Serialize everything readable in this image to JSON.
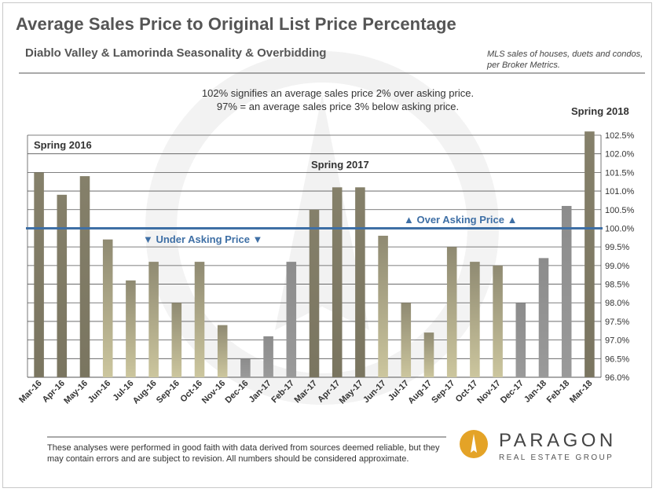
{
  "header": {
    "title": "Average Sales Price to Original List Price Percentage",
    "subtitle": "Diablo Valley & Lamorinda Seasonality & Overbidding",
    "source": "MLS sales of houses, duets and condos, per Broker Metrics."
  },
  "note": {
    "line1": "102% signifies  an average sales  price 2% over asking  price.",
    "line2": "97% = an average sales price  3% below asking price."
  },
  "footer": {
    "disclaimer": "These analyses were performed in good faith with data derived from sources deemed reliable, but they may contain errors and are subject to revision. All numbers should be considered  approximate.",
    "logo_name": "PARAGON",
    "logo_tagline": "REAL ESTATE GROUP"
  },
  "colors": {
    "spring": "#7a7560",
    "other": "#ccc69e",
    "winter": "#8c8c8c",
    "reference": "#3e6fa5"
  },
  "chart_data": {
    "type": "bar",
    "categories": [
      "Mar-16",
      "Apr-16",
      "May-16",
      "Jun-16",
      "Jul-16",
      "Aug-16",
      "Sep-16",
      "Oct-16",
      "Nov-16",
      "Dec-16",
      "Jan-17",
      "Feb-17",
      "Mar-17",
      "Apr-17",
      "May-17",
      "Jun-17",
      "Jul-17",
      "Aug-17",
      "Sep-17",
      "Oct-17",
      "Nov-17",
      "Dec-17",
      "Jan-18",
      "Feb-18",
      "Mar-18"
    ],
    "values": [
      101.5,
      100.9,
      101.4,
      99.7,
      98.6,
      99.1,
      98.0,
      99.1,
      97.4,
      96.5,
      97.1,
      99.1,
      100.5,
      101.1,
      101.1,
      99.8,
      98.0,
      97.2,
      99.5,
      99.1,
      99.0,
      98.0,
      99.2,
      100.6,
      102.6
    ],
    "groups": [
      "spring",
      "spring",
      "spring",
      "other",
      "other",
      "other",
      "other",
      "other",
      "other",
      "winter",
      "winter",
      "winter",
      "spring",
      "spring",
      "spring",
      "other",
      "other",
      "other",
      "other",
      "other",
      "other",
      "winter",
      "winter",
      "winter",
      "spring"
    ],
    "ylim": [
      96.0,
      102.5
    ],
    "yticks": [
      "96.0%",
      "96.5%",
      "97.0%",
      "97.5%",
      "98.0%",
      "98.5%",
      "99.0%",
      "99.5%",
      "100.0%",
      "100.5%",
      "101.0%",
      "101.5%",
      "102.0%",
      "102.5%"
    ],
    "ytick_values": [
      96.0,
      96.5,
      97.0,
      97.5,
      98.0,
      98.5,
      99.0,
      99.5,
      100.0,
      100.5,
      101.0,
      101.5,
      102.0,
      102.5
    ],
    "reference_line": 100.0,
    "grid": true,
    "annotations": {
      "spring_2016": "Spring 2016",
      "spring_2017": "Spring 2017",
      "spring_2018": "Spring 2018",
      "under": "▼ Under Asking Price ▼",
      "over": "▲ Over Asking Price ▲"
    }
  }
}
